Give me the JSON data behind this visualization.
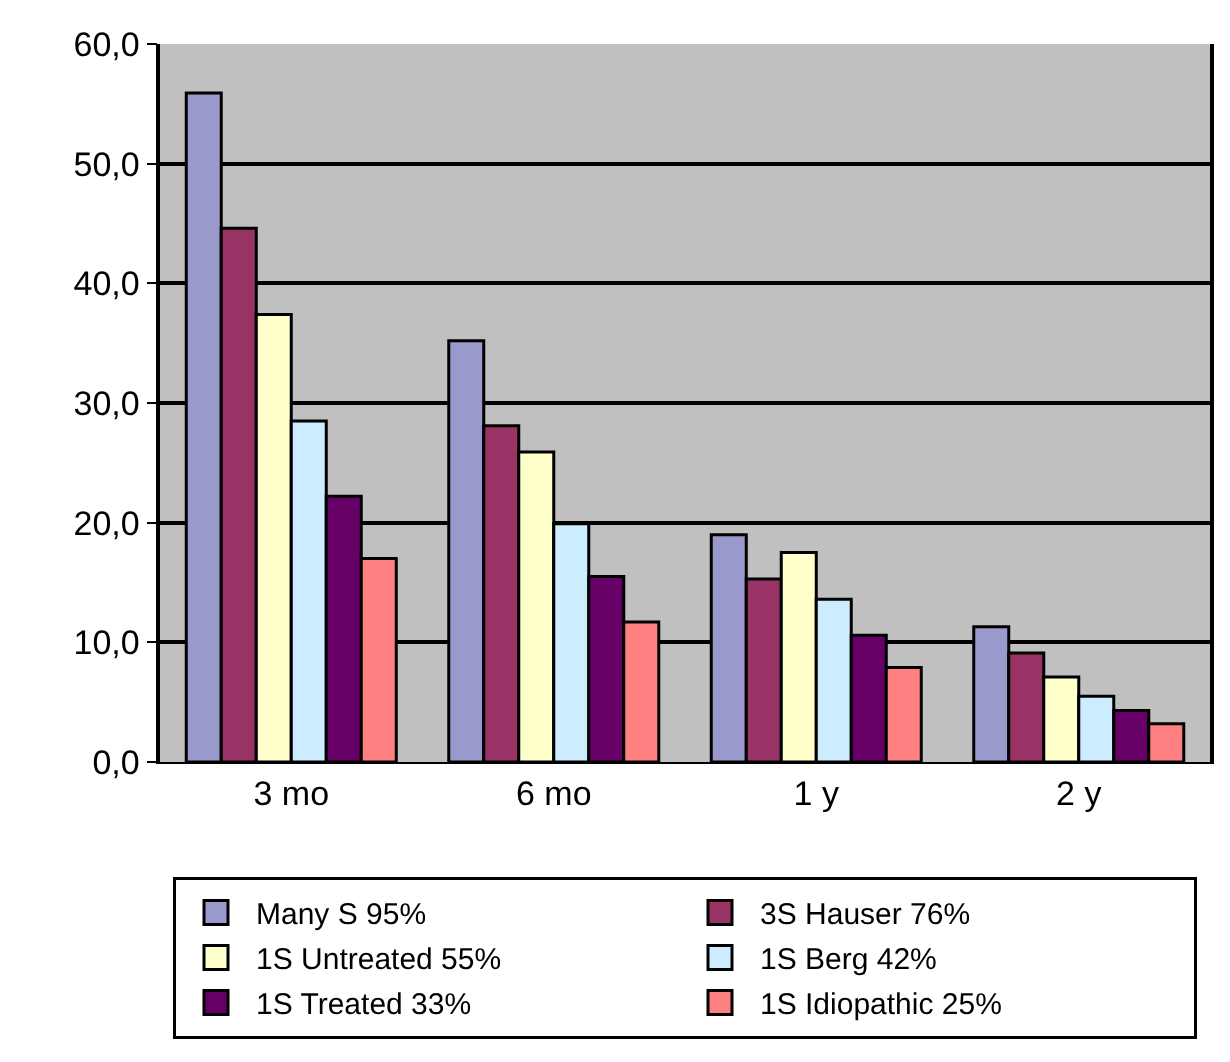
{
  "chart_data": {
    "type": "bar",
    "categories": [
      "3 mo",
      "6 mo",
      "1 y",
      "2 y"
    ],
    "series": [
      {
        "name": "Many S 95%",
        "color": "#9999cc",
        "values": [
          55.9,
          35.2,
          19.0,
          11.3
        ]
      },
      {
        "name": "3S Hauser 76%",
        "color": "#993366",
        "values": [
          44.6,
          28.1,
          15.3,
          9.1
        ]
      },
      {
        "name": "1S Untreated 55%",
        "color": "#ffffcc",
        "values": [
          37.4,
          25.9,
          17.5,
          7.1
        ]
      },
      {
        "name": "1S Berg 42%",
        "color": "#ccecff",
        "values": [
          28.5,
          19.9,
          13.6,
          5.5
        ]
      },
      {
        "name": "1S Treated 33%",
        "color": "#660066",
        "values": [
          22.2,
          15.5,
          10.6,
          4.3
        ]
      },
      {
        "name": "1S Idiopathic 25%",
        "color": "#ff8080",
        "values": [
          17.0,
          11.7,
          7.9,
          3.2
        ]
      }
    ],
    "ylim": [
      0,
      60
    ],
    "yticks": [
      {
        "value": 0,
        "label": "0,0"
      },
      {
        "value": 10,
        "label": "10,0"
      },
      {
        "value": 20,
        "label": "20,0"
      },
      {
        "value": 30,
        "label": "30,0"
      },
      {
        "value": 40,
        "label": "40,0"
      },
      {
        "value": 50,
        "label": "50,0"
      },
      {
        "value": 60,
        "label": "60,0"
      }
    ],
    "grid": "y",
    "legend": "bottom"
  }
}
